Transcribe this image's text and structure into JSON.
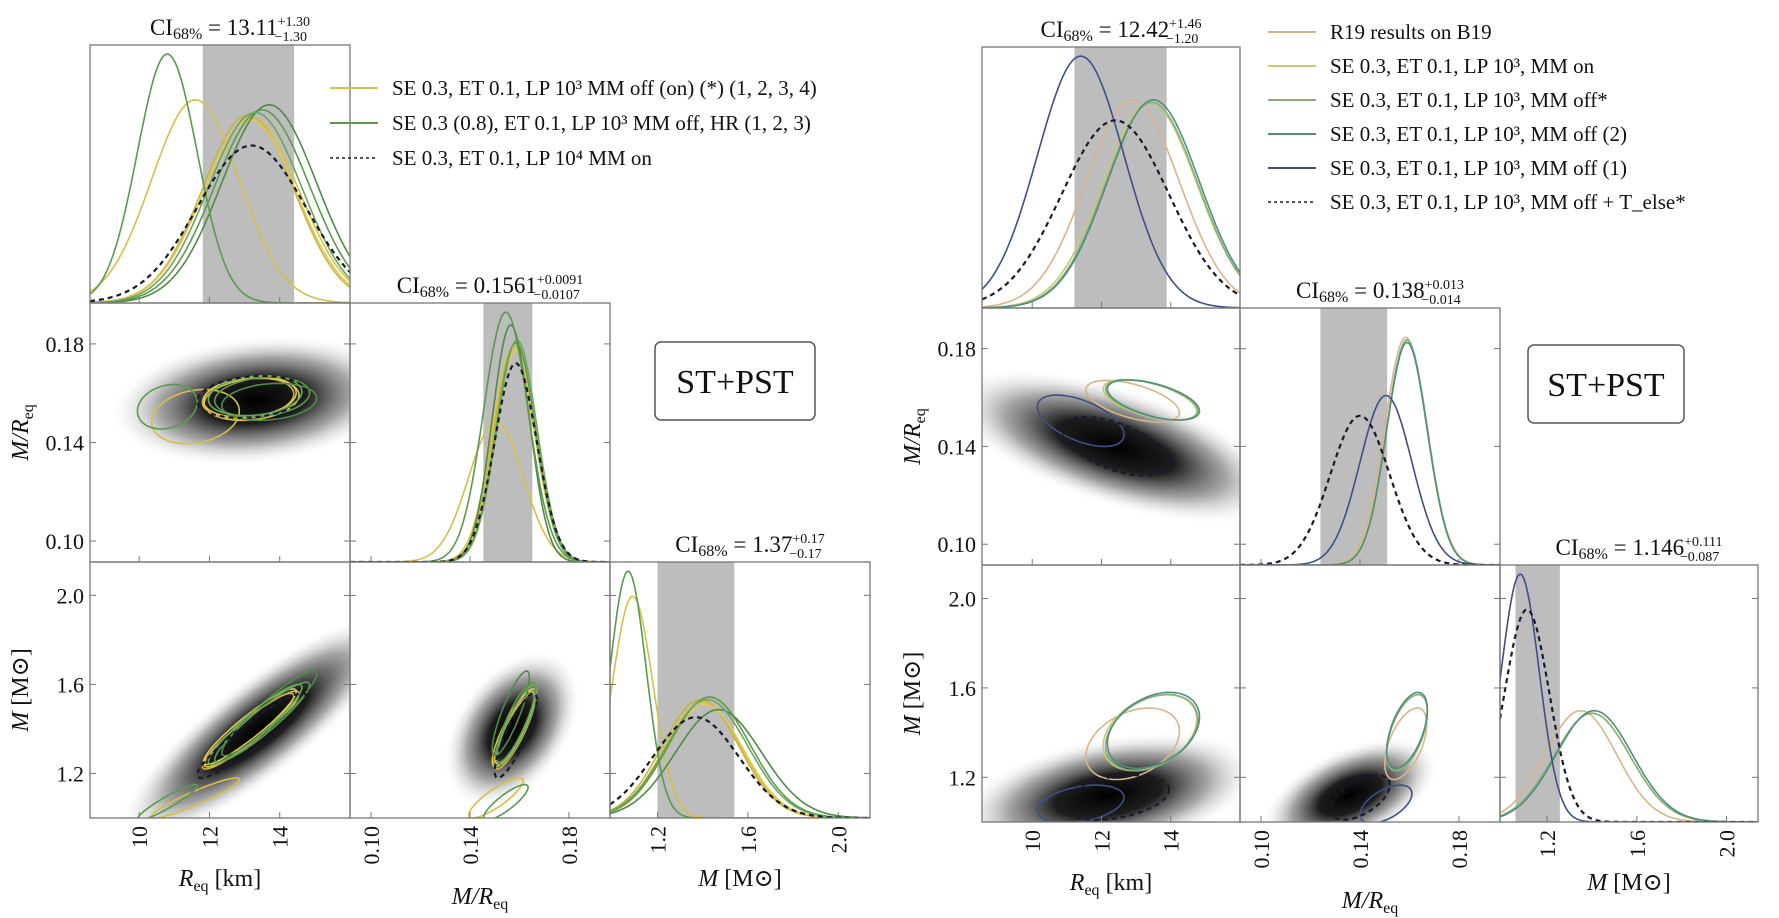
{
  "chart_data": [
    {
      "type": "corner",
      "name": "left-corner-plot",
      "annotation": "ST+PST",
      "params": [
        {
          "key": "Req",
          "label": "R",
          "sub": "eq",
          "unit": "[km]",
          "range": [
            8.6,
            16.0
          ],
          "ticks": [
            10,
            12,
            14
          ],
          "tick_labels": [
            "10",
            "12",
            "14"
          ],
          "ci": {
            "prefix": "CI",
            "sub": "68%",
            "value": "13.11",
            "plus": "+1.30",
            "minus": "−1.30",
            "lo": 11.81,
            "hi": 14.41
          }
        },
        {
          "key": "MR",
          "label": "M/R",
          "sub": "eq",
          "unit": "",
          "range": [
            0.0915,
            0.1966
          ],
          "ticks": [
            0.1,
            0.14,
            0.18
          ],
          "tick_labels": [
            "0.10",
            "0.14",
            "0.18"
          ],
          "ci": {
            "prefix": "CI",
            "sub": "68%",
            "value": "0.1561",
            "plus": "+0.0091",
            "minus": "−0.0107",
            "lo": 0.1454,
            "hi": 0.1652
          }
        },
        {
          "key": "M",
          "label": "M",
          "sub": "",
          "unit": "[M⊙]",
          "range": [
            0.99,
            2.14
          ],
          "ticks": [
            1.2,
            1.6,
            2.0
          ],
          "tick_labels": [
            "1.2",
            "1.6",
            "2.0"
          ],
          "yrange": [
            1.0,
            2.15
          ],
          "ci": {
            "prefix": "CI",
            "sub": "68%",
            "value": "1.37",
            "plus": "+0.17",
            "minus": "−0.17",
            "lo": 1.2,
            "hi": 1.54
          }
        }
      ],
      "legend": [
        {
          "label": "SE 0.3, ET 0.1, LP 10³ MM off (on) (*) (1, 2, 3, 4)",
          "color": "#d9c24a",
          "style": "solid"
        },
        {
          "label": "SE 0.3 (0.8), ET 0.1, LP 10³ MM off, HR (1, 2, 3)",
          "color": "#5e9a4e",
          "style": "solid"
        },
        {
          "label": "SE 0.3, ET 0.1, LP 10⁴ MM on",
          "color": "#1a1a2e",
          "style": "dashed"
        }
      ],
      "legend_position": "top-right",
      "density": {
        "Req_MR": {
          "center": [
            13.3,
            0.157
          ],
          "sd": [
            1.6,
            0.012
          ],
          "rho": 0.2
        },
        "Req_M": {
          "center": [
            13.4,
            1.4
          ],
          "sd": [
            1.5,
            0.2
          ],
          "rho": 0.93
        },
        "MR_M": {
          "center": [
            0.157,
            1.4
          ],
          "sd": [
            0.011,
            0.2
          ],
          "rho": 0.85
        }
      },
      "series": [
        {
          "name": "yellow-1",
          "color": "#d9c24a",
          "style": "solid",
          "marg": {
            "Req": [
              13.2,
              1.35,
              0.73
            ],
            "MR": [
              0.1575,
              0.0085,
              0.84
            ],
            "M": [
              1.4,
              0.17,
              0.46
            ]
          }
        },
        {
          "name": "yellow-2",
          "color": "#cdb43c",
          "style": "solid",
          "marg": {
            "Req": [
              13.1,
              1.3,
              0.74
            ],
            "MR": [
              0.158,
              0.0083,
              0.85
            ],
            "M": [
              1.39,
              0.17,
              0.47
            ]
          }
        },
        {
          "name": "yellow-3",
          "color": "#e0c858",
          "style": "solid",
          "marg": {
            "Req": [
              13.15,
              1.32,
              0.72
            ],
            "MR": [
              0.1585,
              0.0082,
              0.83
            ],
            "M": [
              1.41,
              0.17,
              0.45
            ]
          }
        },
        {
          "name": "yellow-low",
          "color": "#d4bf48",
          "style": "solid",
          "marg": {
            "Req": [
              11.6,
              1.25,
              0.8
            ],
            "MR": [
              0.1505,
              0.011,
              0.55
            ],
            "M": [
              1.09,
              0.09,
              0.88
            ]
          }
        },
        {
          "name": "green-1",
          "color": "#5e9a4e",
          "style": "solid",
          "marg": {
            "Req": [
              13.5,
              1.35,
              0.76
            ],
            "MR": [
              0.1585,
              0.008,
              0.86
            ],
            "M": [
              1.43,
              0.18,
              0.48
            ]
          }
        },
        {
          "name": "green-2",
          "color": "#4e8a48",
          "style": "solid",
          "marg": {
            "Req": [
              13.7,
              1.35,
              0.78
            ],
            "MR": [
              0.1565,
              0.0075,
              0.93
            ],
            "M": [
              1.47,
              0.19,
              0.43
            ]
          }
        },
        {
          "name": "green-3",
          "color": "#6aa85a",
          "style": "solid",
          "marg": {
            "Req": [
              13.3,
              1.33,
              0.75
            ],
            "MR": [
              0.159,
              0.0081,
              0.87
            ],
            "M": [
              1.42,
              0.18,
              0.47
            ]
          }
        },
        {
          "name": "green-low",
          "color": "#5a9a50",
          "style": "solid",
          "marg": {
            "Req": [
              10.8,
              0.85,
              0.98
            ],
            "MR": [
              0.1545,
              0.009,
              0.98
            ],
            "M": [
              1.07,
              0.08,
              0.98
            ]
          }
        },
        {
          "name": "dashed-ref",
          "color": "#1a1a2e",
          "style": "dashed",
          "marg": {
            "Req": [
              13.2,
              1.55,
              0.62
            ],
            "MR": [
              0.1585,
              0.0085,
              0.78
            ],
            "M": [
              1.37,
              0.19,
              0.4
            ]
          }
        }
      ]
    },
    {
      "type": "corner",
      "name": "right-corner-plot",
      "annotation": "ST+PST",
      "params": [
        {
          "key": "Req",
          "label": "R",
          "sub": "eq",
          "unit": "[km]",
          "range": [
            8.55,
            16.0
          ],
          "ticks": [
            10,
            12,
            14
          ],
          "tick_labels": [
            "10",
            "12",
            "14"
          ],
          "ci": {
            "prefix": "CI",
            "sub": "68%",
            "value": "12.42",
            "plus": "+1.46",
            "minus": "−1.20",
            "lo": 11.22,
            "hi": 13.88
          }
        },
        {
          "key": "MR",
          "label": "M/R",
          "sub": "eq",
          "unit": "",
          "range": [
            0.0915,
            0.1966
          ],
          "ticks": [
            0.1,
            0.14,
            0.18
          ],
          "tick_labels": [
            "0.10",
            "0.14",
            "0.18"
          ],
          "ci": {
            "prefix": "CI",
            "sub": "68%",
            "value": "0.138",
            "plus": "+0.013",
            "minus": "−0.014",
            "lo": 0.124,
            "hi": 0.151
          }
        },
        {
          "key": "M",
          "label": "M",
          "sub": "",
          "unit": "[M⊙]",
          "range": [
            0.99,
            2.14
          ],
          "ticks": [
            1.2,
            1.6,
            2.0
          ],
          "tick_labels": [
            "1.2",
            "1.6",
            "2.0"
          ],
          "yrange": [
            1.0,
            2.15
          ],
          "ci": {
            "prefix": "CI",
            "sub": "68%",
            "value": "1.146",
            "plus": "+0.111",
            "minus": "−0.087",
            "lo": 1.059,
            "hi": 1.257
          }
        }
      ],
      "legend": [
        {
          "label": "R19 results on B19",
          "color": "#d8b48a",
          "style": "solid"
        },
        {
          "label": "SE 0.3, ET 0.1, LP 10³, MM on",
          "color": "#c9c774",
          "style": "solid"
        },
        {
          "label": "SE 0.3, ET 0.1, LP 10³, MM off*",
          "color": "#86b07a",
          "style": "solid"
        },
        {
          "label": "SE 0.3, ET 0.1, LP 10³, MM off (2)",
          "color": "#4f8f7c",
          "style": "solid"
        },
        {
          "label": "SE 0.3, ET 0.1, LP 10³, MM off (1)",
          "color": "#3f4f86",
          "style": "solid"
        },
        {
          "label": "SE 0.3, ET 0.1, LP 10³, MM off + T_else*",
          "color": "#1a1a2e",
          "style": "dashed"
        }
      ],
      "legend_position": "top-right",
      "density": {
        "Req_MR": {
          "center": [
            12.4,
            0.14
          ],
          "sd": [
            1.7,
            0.014
          ],
          "rho": -0.55
        },
        "Req_M": {
          "center": [
            12.2,
            1.12
          ],
          "sd": [
            1.6,
            0.13
          ],
          "rho": 0.35
        },
        "MR_M": {
          "center": [
            0.136,
            1.12
          ],
          "sd": [
            0.013,
            0.12
          ],
          "rho": 0.55
        }
      },
      "series": [
        {
          "name": "R19",
          "color": "#d8b48a",
          "style": "solid",
          "marg": {
            "Req": [
              12.9,
              1.35,
              0.81
            ],
            "MR": [
              0.1585,
              0.0085,
              0.9
            ],
            "M": [
              1.35,
              0.16,
              0.44
            ]
          }
        },
        {
          "name": "MM-on",
          "color": "#c9c774",
          "style": "solid",
          "marg": {
            "Req": [
              13.4,
              1.35,
              0.8
            ],
            "MR": [
              0.159,
              0.0083,
              0.89
            ],
            "M": [
              1.4,
              0.17,
              0.43
            ]
          }
        },
        {
          "name": "MM-off-star",
          "color": "#86b07a",
          "style": "solid",
          "marg": {
            "Req": [
              13.45,
              1.33,
              0.8
            ],
            "MR": [
              0.159,
              0.0082,
              0.89
            ],
            "M": [
              1.4,
              0.17,
              0.43
            ]
          }
        },
        {
          "name": "MM-off-2",
          "color": "#4f8f7c",
          "style": "solid",
          "marg": {
            "Req": [
              13.5,
              1.33,
              0.81
            ],
            "MR": [
              0.159,
              0.0082,
              0.88
            ],
            "M": [
              1.41,
              0.17,
              0.44
            ]
          }
        },
        {
          "name": "MM-off-1",
          "color": "#3f4f86",
          "style": "solid",
          "marg": {
            "Req": [
              11.4,
              1.25,
              0.98
            ],
            "MR": [
              0.1505,
              0.0105,
              0.67
            ],
            "M": [
              1.08,
              0.085,
              0.98
            ]
          }
        },
        {
          "name": "Telse",
          "color": "#1a1a2e",
          "style": "dashed",
          "marg": {
            "Req": [
              12.4,
              1.55,
              0.73
            ],
            "MR": [
              0.14,
              0.012,
              0.59
            ],
            "M": [
              1.11,
              0.1,
              0.84
            ]
          }
        }
      ]
    }
  ]
}
